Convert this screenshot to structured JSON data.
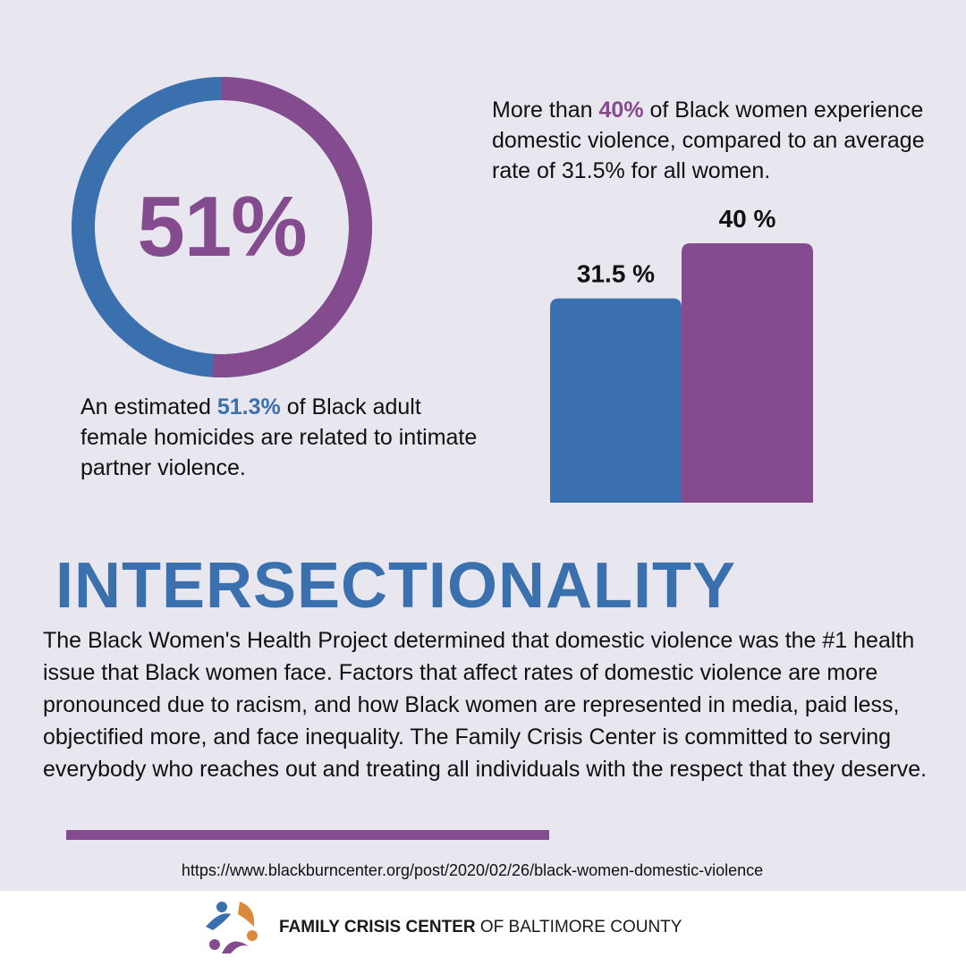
{
  "donut": {
    "value_label": "51%",
    "percent": 51,
    "colors": {
      "part": "#844b8f",
      "rest": "#3a70ad"
    }
  },
  "homicide_note": {
    "prefix": "An estimated ",
    "highlight": "51.3%",
    "suffix": " of Black adult female homicides are related to intimate partner violence."
  },
  "dv_note": {
    "prefix": "More than ",
    "highlight": "40%",
    "suffix": " of Black women experience domestic violence, compared to an average rate of 31.5% for all women."
  },
  "chart_data": {
    "type": "bar",
    "categories": [
      "",
      ""
    ],
    "values": [
      31.5,
      40
    ],
    "data_labels": [
      "31.5 %",
      "40 %"
    ],
    "colors": [
      "#3a70ad",
      "#844b8f"
    ],
    "ylim": [
      0,
      50
    ],
    "grid": false,
    "title": "",
    "xlabel": "",
    "ylabel": ""
  },
  "section": {
    "title": "INTERSECTIONALITY",
    "body": "The Black Women's Health Project determined that domestic violence was the #1 health issue that Black women face. Factors that affect rates of domestic violence are more pronounced due to racism, and how Black women are represented in media, paid less, objectified more, and face inequality. The Family Crisis Center is committed to serving everybody who reaches out and treating all individuals with the respect that they deserve."
  },
  "source": {
    "url": "https://www.blackburncenter.org/post/2020/02/26/black-women-domestic-violence"
  },
  "footer": {
    "org_bold": "FAMILY CRISIS CENTER",
    "org_rest": " OF BALTIMORE COUNTY",
    "logo_icon": "family-logo-icon",
    "logo_colors": [
      "#3a70ad",
      "#d98a3a",
      "#844b8f"
    ]
  }
}
